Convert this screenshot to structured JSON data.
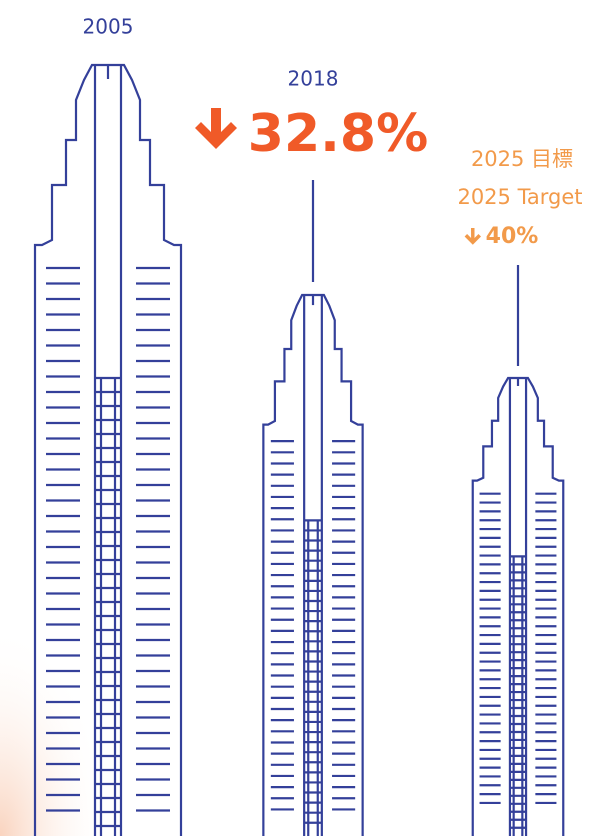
{
  "columns": [
    {
      "year": "2005"
    },
    {
      "year": "2018",
      "change": "32.8%"
    },
    {
      "label_zh": "2025 目標",
      "label_en": "2025 Target",
      "change": "40%"
    }
  ]
}
